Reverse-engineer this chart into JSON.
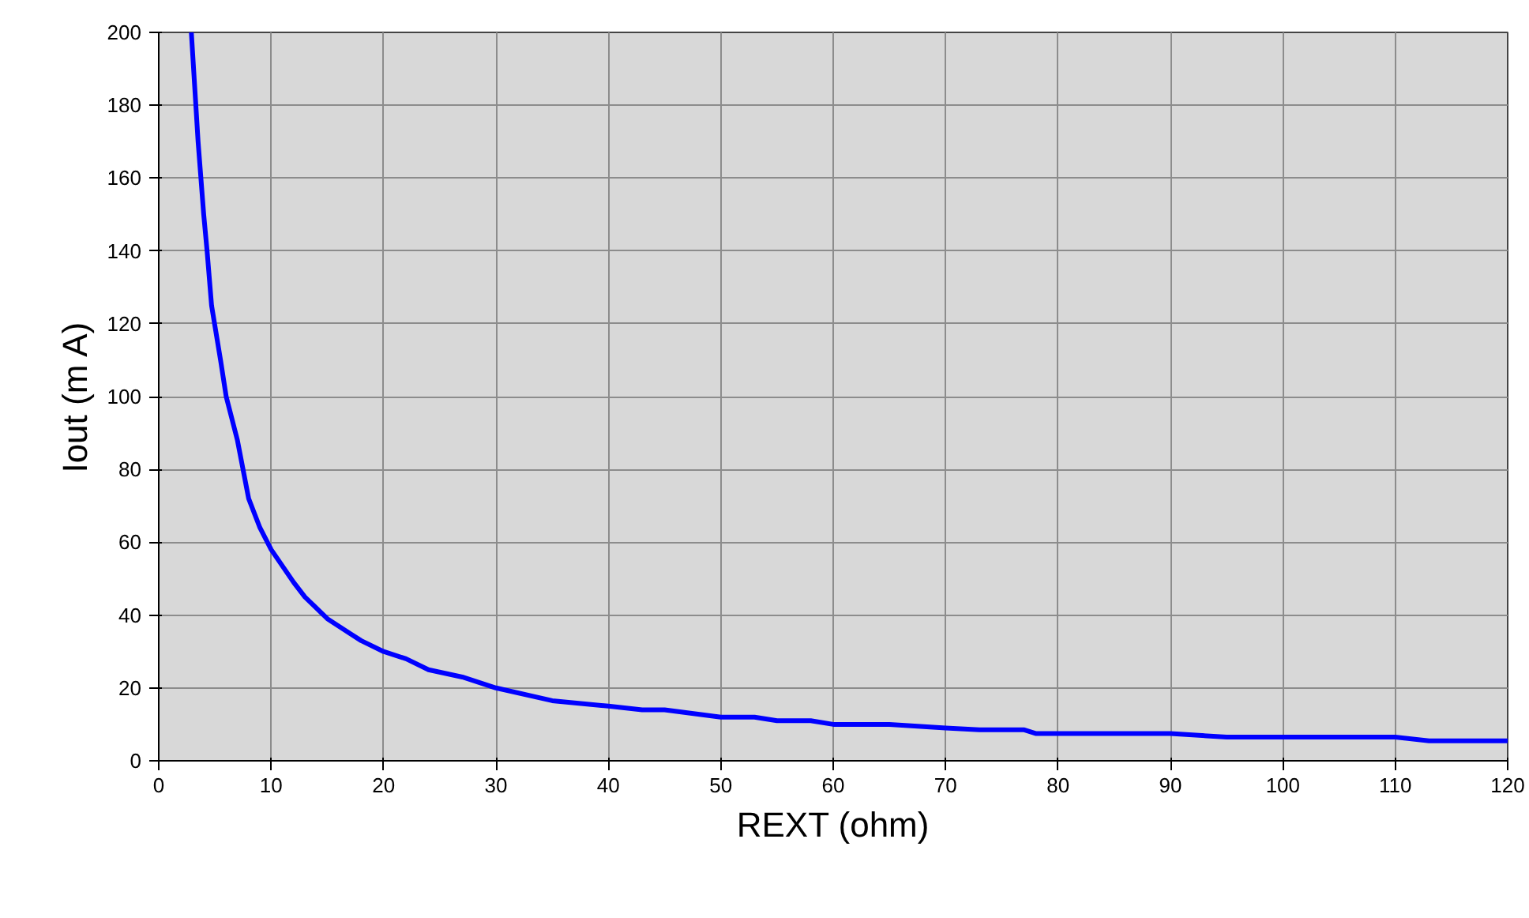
{
  "chart_data": {
    "type": "line",
    "xlabel": "REXT (ohm)",
    "ylabel": "Iout (m A)",
    "xlim": [
      0,
      120
    ],
    "xticks": [
      0,
      10,
      20,
      30,
      40,
      50,
      60,
      70,
      80,
      90,
      100,
      110,
      120
    ],
    "ylim": [
      0,
      200
    ],
    "yticks": [
      0,
      20,
      40,
      60,
      80,
      100,
      120,
      140,
      160,
      180,
      200
    ],
    "grid": true,
    "marker": "none",
    "line_style": "solid",
    "series": [
      {
        "color": "#0000ff",
        "x": [
          2.9,
          3.2,
          3.5,
          4,
          4.3,
          4.7,
          5.5,
          6,
          7,
          8,
          9,
          10,
          12,
          13,
          15,
          17,
          18,
          20,
          22,
          24,
          27,
          30,
          35,
          40,
          43,
          45,
          50,
          53,
          55,
          58,
          60,
          65,
          70,
          73,
          77,
          78,
          90,
          95,
          110,
          113,
          120
        ],
        "values": [
          200,
          185,
          170,
          150,
          140,
          125,
          110,
          100,
          88,
          72,
          64,
          58,
          49,
          45,
          39,
          35,
          33,
          30,
          28,
          25,
          23,
          20,
          16.5,
          15,
          14,
          14,
          12,
          12,
          11,
          11,
          10,
          10,
          9,
          8.5,
          8.5,
          7.5,
          7.5,
          6.5,
          6.5,
          5.5,
          5.5
        ]
      }
    ]
  }
}
